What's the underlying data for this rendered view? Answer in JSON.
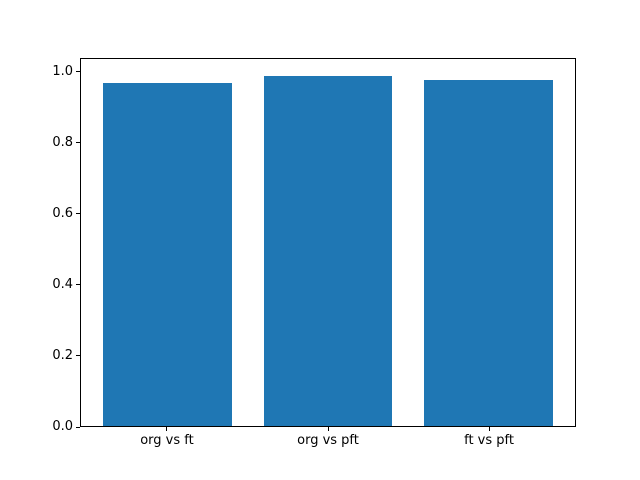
{
  "chart_data": {
    "type": "bar",
    "title": "",
    "xlabel": "",
    "ylabel": "",
    "categories": [
      "org vs ft",
      "org vs pft",
      "ft vs pft"
    ],
    "values": [
      0.971,
      0.99,
      0.979
    ],
    "yticks": [
      0.0,
      0.2,
      0.4,
      0.6,
      0.8,
      1.0
    ],
    "ytick_labels": [
      "0.0",
      "0.2",
      "0.4",
      "0.6",
      "0.8",
      "1.0"
    ],
    "ylim": [
      0,
      1.039
    ],
    "xlim": [
      -0.54,
      2.54
    ],
    "bar_width": 0.8,
    "bar_color": "#1f77b4",
    "axis_color": "#000000",
    "text_color": "#000000",
    "background": "#ffffff",
    "grid": false,
    "legend": null
  }
}
